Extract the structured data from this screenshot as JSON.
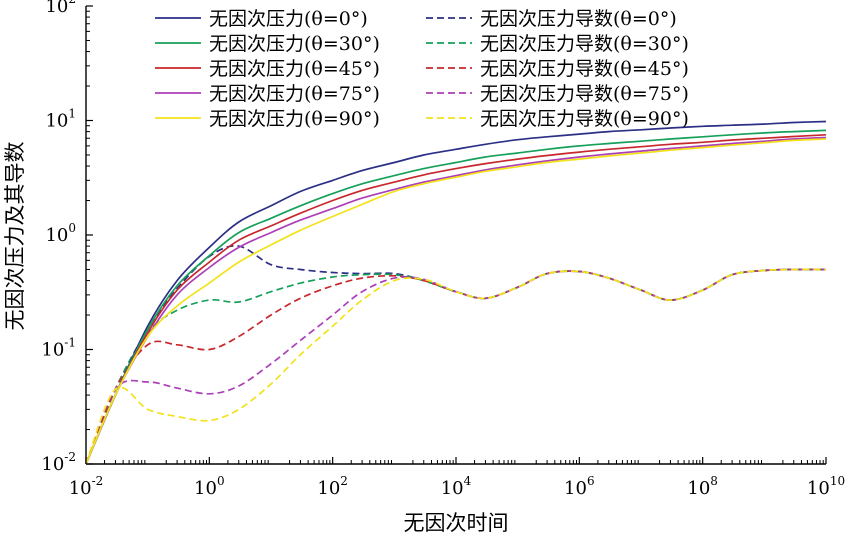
{
  "chart_data": {
    "type": "line",
    "title": "",
    "xlabel": "无因次时间",
    "ylabel": "无因次压力及其导数",
    "xscale": "log",
    "yscale": "log",
    "xlim": [
      0.01,
      10000000000
    ],
    "ylim": [
      0.01,
      100
    ],
    "grid": false,
    "legend_position": "top, two columns",
    "x_ticks": [
      {
        "value": 0.01,
        "base": "10",
        "exp": "-2"
      },
      {
        "value": 1,
        "base": "10",
        "exp": "0"
      },
      {
        "value": 100,
        "base": "10",
        "exp": "2"
      },
      {
        "value": 10000,
        "base": "10",
        "exp": "4"
      },
      {
        "value": 1000000,
        "base": "10",
        "exp": "6"
      },
      {
        "value": 100000000,
        "base": "10",
        "exp": "8"
      },
      {
        "value": 10000000000,
        "base": "10",
        "exp": "10"
      }
    ],
    "y_ticks": [
      {
        "value": 0.01,
        "base": "10",
        "exp": "-2"
      },
      {
        "value": 0.1,
        "base": "10",
        "exp": "-1"
      },
      {
        "value": 1,
        "base": "10",
        "exp": "0"
      },
      {
        "value": 10,
        "base": "10",
        "exp": "1"
      },
      {
        "value": 100,
        "base": "10",
        "exp": "2"
      }
    ],
    "x": [
      0.01,
      0.03,
      0.1,
      0.3,
      1,
      3,
      10,
      30,
      100,
      300,
      1000,
      3000,
      10000,
      30000,
      100000,
      300000,
      1000000,
      3000000,
      10000000,
      30000000,
      100000000,
      300000000,
      1000000000,
      3000000000,
      10000000000
    ],
    "series": [
      {
        "name": "无因次压力(θ=0°)",
        "color": "#2b2f86",
        "dash": "solid",
        "values": [
          0.01,
          0.04,
          0.16,
          0.4,
          0.78,
          1.3,
          1.8,
          2.4,
          3.0,
          3.65,
          4.3,
          5.0,
          5.6,
          6.2,
          6.8,
          7.2,
          7.6,
          8.0,
          8.3,
          8.6,
          8.9,
          9.1,
          9.3,
          9.6,
          9.8
        ]
      },
      {
        "name": "无因次压力(θ=30°)",
        "color": "#16a05a",
        "dash": "solid",
        "values": [
          0.01,
          0.04,
          0.15,
          0.36,
          0.66,
          1.05,
          1.4,
          1.8,
          2.3,
          2.8,
          3.3,
          3.8,
          4.3,
          4.8,
          5.2,
          5.6,
          6.0,
          6.3,
          6.6,
          6.9,
          7.2,
          7.5,
          7.8,
          8.0,
          8.2
        ]
      },
      {
        "name": "无因次压力(θ=45°)",
        "color": "#c8282d",
        "dash": "solid",
        "values": [
          0.01,
          0.04,
          0.14,
          0.33,
          0.58,
          0.9,
          1.2,
          1.55,
          2.0,
          2.45,
          2.9,
          3.35,
          3.8,
          4.2,
          4.6,
          4.95,
          5.3,
          5.6,
          5.9,
          6.2,
          6.45,
          6.75,
          7.0,
          7.25,
          7.5
        ]
      },
      {
        "name": "无因次压力(θ=75°)",
        "color": "#ad3fb8",
        "dash": "solid",
        "values": [
          0.01,
          0.04,
          0.13,
          0.3,
          0.52,
          0.78,
          1.05,
          1.35,
          1.7,
          2.1,
          2.5,
          2.9,
          3.3,
          3.7,
          4.1,
          4.45,
          4.8,
          5.1,
          5.4,
          5.7,
          6.0,
          6.3,
          6.6,
          6.9,
          7.1
        ]
      },
      {
        "name": "无因次压力(θ=90°)",
        "color": "#f2e21a",
        "dash": "solid",
        "values": [
          0.01,
          0.04,
          0.13,
          0.24,
          0.38,
          0.58,
          0.82,
          1.1,
          1.45,
          1.85,
          2.4,
          2.8,
          3.2,
          3.6,
          3.95,
          4.3,
          4.6,
          4.9,
          5.2,
          5.5,
          5.8,
          6.1,
          6.4,
          6.7,
          6.9
        ]
      },
      {
        "name": "无因次压力导数(θ=0°)",
        "color": "#2b2f86",
        "dash": "dashed",
        "values": [
          0.01,
          0.045,
          0.15,
          0.34,
          0.65,
          0.8,
          0.55,
          0.5,
          0.47,
          0.46,
          0.46,
          0.4,
          0.32,
          0.28,
          0.35,
          0.46,
          0.48,
          0.42,
          0.33,
          0.27,
          0.33,
          0.45,
          0.49,
          0.5,
          0.5
        ]
      },
      {
        "name": "无因次压力导数(θ=30°)",
        "color": "#16a05a",
        "dash": "dashed",
        "values": [
          0.01,
          0.045,
          0.14,
          0.22,
          0.27,
          0.26,
          0.32,
          0.38,
          0.43,
          0.45,
          0.45,
          0.4,
          0.32,
          0.28,
          0.35,
          0.46,
          0.48,
          0.42,
          0.33,
          0.27,
          0.33,
          0.45,
          0.49,
          0.5,
          0.5
        ]
      },
      {
        "name": "无因次压力导数(θ=45°)",
        "color": "#c8282d",
        "dash": "dashed",
        "values": [
          0.01,
          0.045,
          0.11,
          0.11,
          0.1,
          0.13,
          0.2,
          0.28,
          0.36,
          0.42,
          0.44,
          0.4,
          0.32,
          0.28,
          0.35,
          0.46,
          0.48,
          0.42,
          0.33,
          0.27,
          0.33,
          0.45,
          0.49,
          0.5,
          0.5
        ]
      },
      {
        "name": "无因次压力导数(θ=75°)",
        "color": "#ad3fb8",
        "dash": "dashed",
        "values": [
          0.01,
          0.045,
          0.052,
          0.046,
          0.041,
          0.048,
          0.075,
          0.12,
          0.2,
          0.32,
          0.42,
          0.41,
          0.32,
          0.28,
          0.35,
          0.46,
          0.48,
          0.42,
          0.33,
          0.27,
          0.33,
          0.45,
          0.49,
          0.5,
          0.5
        ]
      },
      {
        "name": "无因次压力导数(θ=90°)",
        "color": "#f2e21a",
        "dash": "dashed",
        "values": [
          0.01,
          0.045,
          0.03,
          0.026,
          0.024,
          0.03,
          0.05,
          0.09,
          0.16,
          0.27,
          0.4,
          0.41,
          0.32,
          0.28,
          0.35,
          0.46,
          0.48,
          0.42,
          0.33,
          0.27,
          0.33,
          0.45,
          0.49,
          0.5,
          0.5
        ]
      }
    ]
  }
}
